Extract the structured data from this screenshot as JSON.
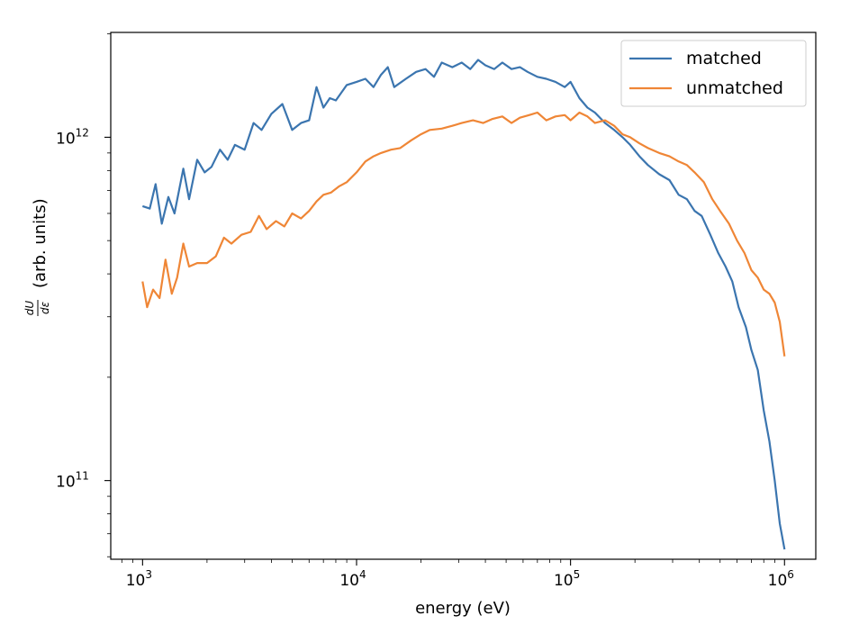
{
  "chart_data": {
    "type": "line",
    "xscale": "log",
    "yscale": "log",
    "xlabel": "energy (eV)",
    "ylabel": "(arb. units)",
    "ylabel_math": {
      "num": "dU",
      "den": "dε"
    },
    "xlim": [
      710,
      1400000
    ],
    "ylim": [
      59000000000,
      2020000000000
    ],
    "x_ticks": [
      {
        "base": "10",
        "exp": "3"
      },
      {
        "base": "10",
        "exp": "4"
      },
      {
        "base": "10",
        "exp": "5"
      },
      {
        "base": "10",
        "exp": "6"
      }
    ],
    "y_ticks": [
      {
        "base": "10",
        "exp": "11"
      },
      {
        "base": "10",
        "exp": "12"
      }
    ],
    "legend_position": "top-right",
    "series": [
      {
        "name": "matched",
        "color": "#3b75af",
        "points": [
          [
            1000,
            630000000000.0
          ],
          [
            1080,
            620000000000.0
          ],
          [
            1150,
            730000000000.0
          ],
          [
            1230,
            560000000000.0
          ],
          [
            1320,
            670000000000.0
          ],
          [
            1410,
            600000000000.0
          ],
          [
            1550,
            810000000000.0
          ],
          [
            1650,
            660000000000.0
          ],
          [
            1800,
            860000000000.0
          ],
          [
            1950,
            790000000000.0
          ],
          [
            2100,
            820000000000.0
          ],
          [
            2300,
            920000000000.0
          ],
          [
            2500,
            860000000000.0
          ],
          [
            2700,
            950000000000.0
          ],
          [
            3000,
            920000000000.0
          ],
          [
            3300,
            1100000000000.0
          ],
          [
            3600,
            1050000000000.0
          ],
          [
            4000,
            1170000000000.0
          ],
          [
            4500,
            1250000000000.0
          ],
          [
            5000,
            1050000000000.0
          ],
          [
            5500,
            1100000000000.0
          ],
          [
            6000,
            1120000000000.0
          ],
          [
            6500,
            1400000000000.0
          ],
          [
            7000,
            1220000000000.0
          ],
          [
            7500,
            1300000000000.0
          ],
          [
            8000,
            1280000000000.0
          ],
          [
            9000,
            1420000000000.0
          ],
          [
            10000,
            1450000000000.0
          ],
          [
            11000,
            1480000000000.0
          ],
          [
            12000,
            1400000000000.0
          ],
          [
            13000,
            1520000000000.0
          ],
          [
            14000,
            1600000000000.0
          ],
          [
            15000,
            1400000000000.0
          ],
          [
            17000,
            1480000000000.0
          ],
          [
            19000,
            1550000000000.0
          ],
          [
            21000,
            1580000000000.0
          ],
          [
            23000,
            1500000000000.0
          ],
          [
            25000,
            1650000000000.0
          ],
          [
            28000,
            1600000000000.0
          ],
          [
            31000,
            1650000000000.0
          ],
          [
            34000,
            1580000000000.0
          ],
          [
            37000,
            1680000000000.0
          ],
          [
            40000,
            1620000000000.0
          ],
          [
            44000,
            1580000000000.0
          ],
          [
            48000,
            1650000000000.0
          ],
          [
            53000,
            1580000000000.0
          ],
          [
            58000,
            1600000000000.0
          ],
          [
            63000,
            1550000000000.0
          ],
          [
            70000,
            1500000000000.0
          ],
          [
            77000,
            1480000000000.0
          ],
          [
            85000,
            1450000000000.0
          ],
          [
            94000,
            1400000000000.0
          ],
          [
            100000,
            1450000000000.0
          ],
          [
            110000,
            1300000000000.0
          ],
          [
            120000,
            1220000000000.0
          ],
          [
            130000,
            1180000000000.0
          ],
          [
            145000,
            1100000000000.0
          ],
          [
            160000,
            1050000000000.0
          ],
          [
            175000,
            1000000000000.0
          ],
          [
            190000,
            950000000000.0
          ],
          [
            210000,
            880000000000.0
          ],
          [
            230000,
            830000000000.0
          ],
          [
            260000,
            780000000000.0
          ],
          [
            290000,
            750000000000.0
          ],
          [
            320000,
            680000000000.0
          ],
          [
            350000,
            660000000000.0
          ],
          [
            380000,
            610000000000.0
          ],
          [
            410000,
            590000000000.0
          ],
          [
            450000,
            520000000000.0
          ],
          [
            490000,
            460000000000.0
          ],
          [
            530000,
            420000000000.0
          ],
          [
            570000,
            380000000000.0
          ],
          [
            610000,
            320000000000.0
          ],
          [
            660000,
            280000000000.0
          ],
          [
            700000,
            240000000000.0
          ],
          [
            750000,
            210000000000.0
          ],
          [
            800000,
            160000000000.0
          ],
          [
            850000,
            130000000000.0
          ],
          [
            900000,
            100000000000.0
          ],
          [
            950000,
            75000000000.0
          ],
          [
            1000000,
            63000000000.0
          ]
        ]
      },
      {
        "name": "unmatched",
        "color": "#ef8636",
        "points": [
          [
            1000,
            380000000000.0
          ],
          [
            1050,
            320000000000.0
          ],
          [
            1120,
            360000000000.0
          ],
          [
            1200,
            340000000000.0
          ],
          [
            1280,
            440000000000.0
          ],
          [
            1370,
            350000000000.0
          ],
          [
            1450,
            390000000000.0
          ],
          [
            1550,
            490000000000.0
          ],
          [
            1650,
            420000000000.0
          ],
          [
            1800,
            430000000000.0
          ],
          [
            2000,
            430000000000.0
          ],
          [
            2200,
            450000000000.0
          ],
          [
            2400,
            510000000000.0
          ],
          [
            2600,
            490000000000.0
          ],
          [
            2900,
            520000000000.0
          ],
          [
            3200,
            530000000000.0
          ],
          [
            3500,
            590000000000.0
          ],
          [
            3800,
            540000000000.0
          ],
          [
            4200,
            570000000000.0
          ],
          [
            4600,
            550000000000.0
          ],
          [
            5000,
            600000000000.0
          ],
          [
            5500,
            580000000000.0
          ],
          [
            6000,
            610000000000.0
          ],
          [
            6500,
            650000000000.0
          ],
          [
            7000,
            680000000000.0
          ],
          [
            7600,
            690000000000.0
          ],
          [
            8300,
            720000000000.0
          ],
          [
            9000,
            740000000000.0
          ],
          [
            10000,
            790000000000.0
          ],
          [
            11000,
            850000000000.0
          ],
          [
            12000,
            880000000000.0
          ],
          [
            13000,
            900000000000.0
          ],
          [
            14500,
            920000000000.0
          ],
          [
            16000,
            930000000000.0
          ],
          [
            18000,
            980000000000.0
          ],
          [
            20000,
            1020000000000.0
          ],
          [
            22000,
            1050000000000.0
          ],
          [
            25000,
            1060000000000.0
          ],
          [
            28000,
            1080000000000.0
          ],
          [
            31000,
            1100000000000.0
          ],
          [
            35000,
            1120000000000.0
          ],
          [
            39000,
            1100000000000.0
          ],
          [
            43000,
            1130000000000.0
          ],
          [
            48000,
            1150000000000.0
          ],
          [
            53000,
            1100000000000.0
          ],
          [
            58000,
            1140000000000.0
          ],
          [
            64000,
            1160000000000.0
          ],
          [
            70000,
            1180000000000.0
          ],
          [
            77000,
            1120000000000.0
          ],
          [
            85000,
            1150000000000.0
          ],
          [
            94000,
            1160000000000.0
          ],
          [
            100000,
            1120000000000.0
          ],
          [
            110000,
            1180000000000.0
          ],
          [
            120000,
            1150000000000.0
          ],
          [
            130000,
            1100000000000.0
          ],
          [
            145000,
            1120000000000.0
          ],
          [
            160000,
            1080000000000.0
          ],
          [
            175000,
            1020000000000.0
          ],
          [
            190000,
            1000000000000.0
          ],
          [
            210000,
            960000000000.0
          ],
          [
            230000,
            930000000000.0
          ],
          [
            260000,
            900000000000.0
          ],
          [
            290000,
            880000000000.0
          ],
          [
            320000,
            850000000000.0
          ],
          [
            350000,
            830000000000.0
          ],
          [
            380000,
            790000000000.0
          ],
          [
            420000,
            740000000000.0
          ],
          [
            460000,
            660000000000.0
          ],
          [
            500000,
            610000000000.0
          ],
          [
            550000,
            560000000000.0
          ],
          [
            600000,
            500000000000.0
          ],
          [
            650000,
            460000000000.0
          ],
          [
            700000,
            410000000000.0
          ],
          [
            750000,
            390000000000.0
          ],
          [
            800000,
            360000000000.0
          ],
          [
            850000,
            350000000000.0
          ],
          [
            900000,
            330000000000.0
          ],
          [
            950000,
            290000000000.0
          ],
          [
            1000000,
            230000000000.0
          ]
        ]
      }
    ]
  }
}
